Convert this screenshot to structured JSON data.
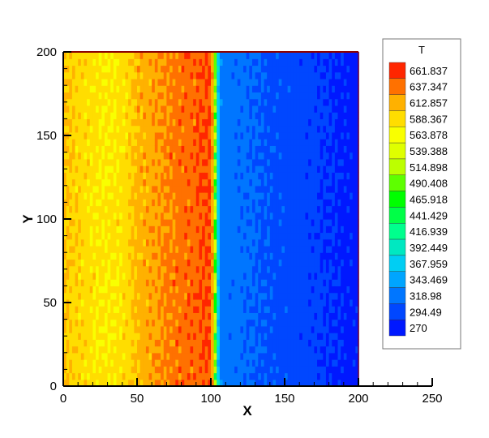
{
  "chart_data": {
    "type": "heatmap",
    "title": "",
    "xlabel": "X",
    "ylabel": "Y",
    "xlim": [
      0,
      250
    ],
    "ylim": [
      0,
      200
    ],
    "domain_x": [
      0,
      200
    ],
    "xticks": [
      "0",
      "50",
      "100",
      "150",
      "200",
      "250"
    ],
    "yticks": [
      "0",
      "50",
      "100",
      "150",
      "200"
    ],
    "legend": {
      "title": "T",
      "placement": "right",
      "levels": [
        "661.837",
        "637.347",
        "612.857",
        "588.367",
        "563.878",
        "539.388",
        "514.898",
        "490.408",
        "465.918",
        "441.429",
        "416.939",
        "392.449",
        "367.959",
        "343.469",
        "318.98",
        "294.49",
        "270"
      ],
      "min": 270,
      "max": 686.327
    },
    "colormap": [
      "#0000ff",
      "#0064ff",
      "#00c8ff",
      "#00ff96",
      "#00ff00",
      "#c8ff00",
      "#ffff00",
      "#ffa000",
      "#ff0000"
    ],
    "x_profile": {
      "x": [
        0,
        10,
        20,
        30,
        40,
        50,
        60,
        70,
        80,
        90,
        100,
        102,
        104,
        106,
        110,
        120,
        140,
        160,
        180,
        200
      ],
      "T": [
        615,
        605,
        595,
        590,
        595,
        620,
        630,
        640,
        650,
        655,
        665,
        600,
        420,
        340,
        330,
        325,
        315,
        305,
        295,
        285
      ]
    }
  }
}
